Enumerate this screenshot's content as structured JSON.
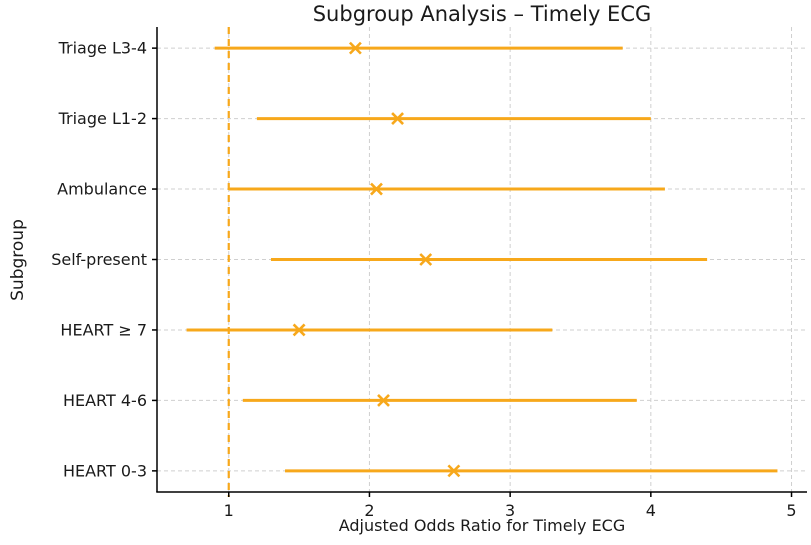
{
  "title": "Subgroup Analysis – Timely ECG",
  "chart_data": {
    "type": "scatter",
    "subtype": "forest-plot-with-error-bars",
    "title": "Subgroup Analysis – Timely ECG",
    "xlabel": "Adjusted Odds Ratio for Timely ECG",
    "ylabel": "Subgroup",
    "categories": [
      "Triage L3-4",
      "Triage L1-2",
      "Ambulance",
      "Self-present",
      "HEART ≥ 7",
      "HEART 4-6",
      "HEART 0-3"
    ],
    "points": [
      {
        "label": "Triage L3-4",
        "or": 1.9,
        "ci_low": 0.9,
        "ci_high": 3.8
      },
      {
        "label": "Triage L1-2",
        "or": 2.2,
        "ci_low": 1.2,
        "ci_high": 4.0
      },
      {
        "label": "Ambulance",
        "or": 2.05,
        "ci_low": 1.0,
        "ci_high": 4.1
      },
      {
        "label": "Self-present",
        "or": 2.4,
        "ci_low": 1.3,
        "ci_high": 4.4
      },
      {
        "label": "HEART ≥ 7",
        "or": 1.5,
        "ci_low": 0.7,
        "ci_high": 3.3
      },
      {
        "label": "HEART 4-6",
        "or": 2.1,
        "ci_low": 1.1,
        "ci_high": 3.9
      },
      {
        "label": "HEART 0-3",
        "or": 2.6,
        "ci_low": 1.4,
        "ci_high": 4.9
      }
    ],
    "x_ticks": [
      1,
      2,
      3,
      4,
      5
    ],
    "xlim": [
      0.49,
      5.11
    ],
    "reference_line_x": 1.0,
    "grid": true,
    "legend": "none",
    "marker_style": "x",
    "colors": {
      "series": "#F7A81B",
      "reference_line": "#F7A81B",
      "grid": "#cfcfcf",
      "spine": "#000000",
      "text": "#1a1a1a"
    }
  }
}
